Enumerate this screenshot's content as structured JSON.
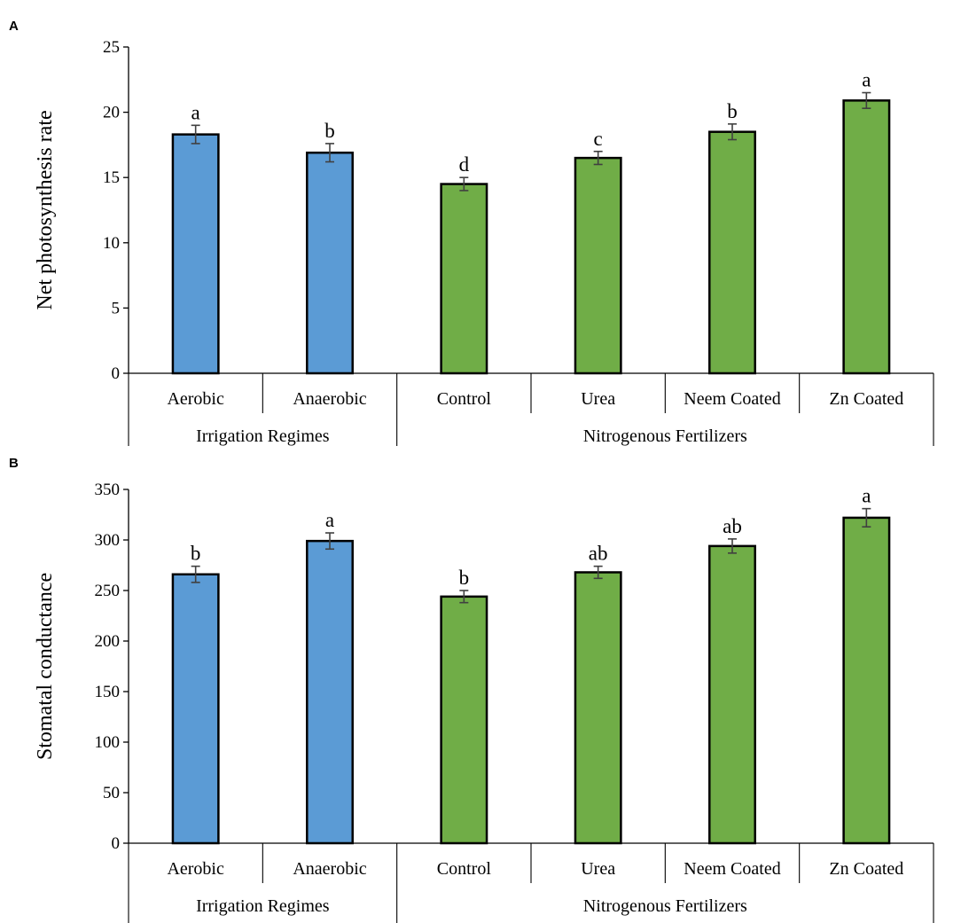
{
  "colors": {
    "irrigation": "#5b9bd5",
    "fertilizer": "#70ad47",
    "outline": "#000000",
    "error_bar": "#404040"
  },
  "chart_data": [
    {
      "type": "bar",
      "panel": "A",
      "title": "",
      "xlabel": "",
      "ylabel": "Net photosynthesis rate",
      "ylim": [
        0,
        25
      ],
      "yticks": [
        0,
        5,
        10,
        15,
        20,
        25
      ],
      "grid": false,
      "categories": [
        "Aerobic",
        "Anaerobic",
        "Control",
        "Urea",
        "Neem Coated",
        "Zn Coated"
      ],
      "values": [
        18.3,
        16.9,
        14.5,
        16.5,
        18.5,
        20.9
      ],
      "errors": [
        0.7,
        0.7,
        0.5,
        0.5,
        0.6,
        0.6
      ],
      "significance": [
        "a",
        "b",
        "d",
        "c",
        "b",
        "a"
      ],
      "groups": [
        {
          "name": "Irrigation Regimes",
          "start": 0,
          "end": 1,
          "color_key": "irrigation"
        },
        {
          "name": "Nitrogenous Fertilizers",
          "start": 2,
          "end": 5,
          "color_key": "fertilizer"
        }
      ]
    },
    {
      "type": "bar",
      "panel": "B",
      "title": "",
      "xlabel": "",
      "ylabel": "Stomatal conductance",
      "ylim": [
        0,
        350
      ],
      "yticks": [
        0,
        50,
        100,
        150,
        200,
        250,
        300,
        350
      ],
      "grid": false,
      "categories": [
        "Aerobic",
        "Anaerobic",
        "Control",
        "Urea",
        "Neem Coated",
        "Zn Coated"
      ],
      "values": [
        266,
        299,
        244,
        268,
        294,
        322
      ],
      "errors": [
        8,
        8,
        6,
        6,
        7,
        9
      ],
      "significance": [
        "b",
        "a",
        "b",
        "ab",
        "ab",
        "a"
      ],
      "groups": [
        {
          "name": "Irrigation Regimes",
          "start": 0,
          "end": 1,
          "color_key": "irrigation"
        },
        {
          "name": "Nitrogenous Fertilizers",
          "start": 2,
          "end": 5,
          "color_key": "fertilizer"
        }
      ]
    }
  ]
}
